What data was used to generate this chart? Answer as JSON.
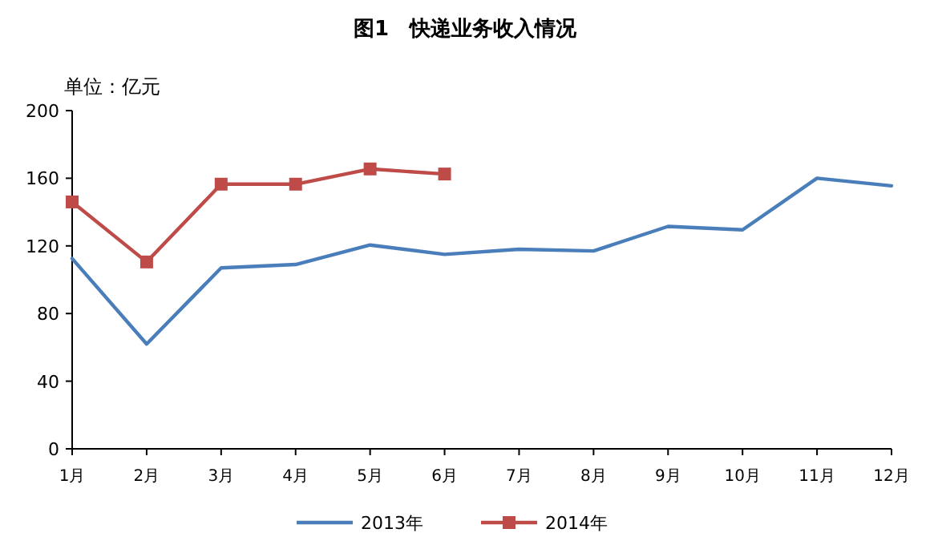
{
  "chart_data": {
    "type": "line",
    "title": "图1　快递业务收入情况",
    "ylabel": "单位：亿元",
    "categories": [
      "1月",
      "2月",
      "3月",
      "4月",
      "5月",
      "6月",
      "7月",
      "8月",
      "9月",
      "10月",
      "11月",
      "12月"
    ],
    "ylim": [
      0,
      200
    ],
    "yticks": [
      0,
      40,
      80,
      120,
      160,
      200
    ],
    "grid": false,
    "legend": "bottom",
    "series": [
      {
        "name": "2013年",
        "color": "#4a7ebb",
        "marker": "none",
        "values": [
          112.5,
          62,
          107,
          109,
          120.5,
          115,
          118,
          117,
          131.5,
          129.5,
          160,
          155.5
        ]
      },
      {
        "name": "2014年",
        "color": "#be4b48",
        "marker": "square",
        "values": [
          146,
          110.5,
          156.5,
          156.5,
          165.5,
          162.5,
          null,
          null,
          null,
          null,
          null,
          null
        ]
      }
    ]
  }
}
